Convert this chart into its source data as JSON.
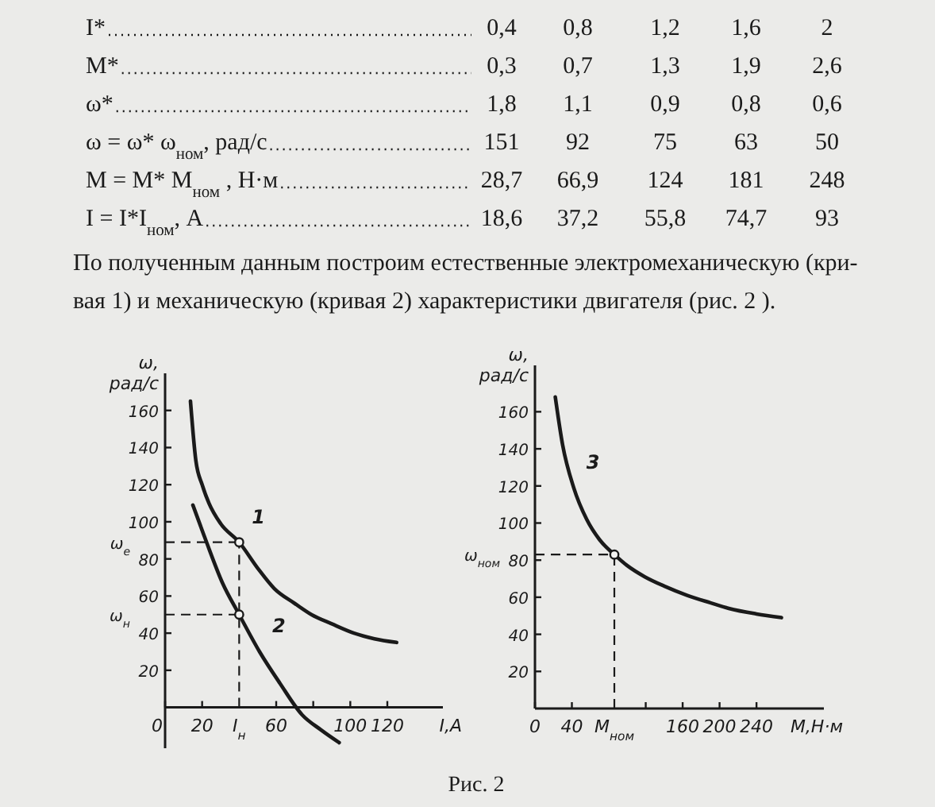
{
  "chart_data": [
    {
      "type": "line",
      "xlabel": "I,A",
      "ylabel": "ω,\nрад/с",
      "xlim": [
        0,
        150
      ],
      "ylim": [
        -22,
        180
      ],
      "xticks": [
        0,
        20,
        60,
        {
          "value": 80,
          "label": null
        },
        100,
        120
      ],
      "yticks": [
        20,
        40,
        60,
        80,
        100,
        120,
        140,
        160
      ],
      "series": [
        {
          "color": "#1a1a1a",
          "marker": "none",
          "x": [
            13.7,
            16.6,
            20,
            23.7,
            30,
            40,
            50,
            59,
            70,
            79,
            90,
            102,
            113,
            125
          ],
          "values": [
            165,
            133,
            120,
            110,
            99,
            89,
            75,
            64,
            56,
            50,
            45,
            40,
            37,
            35
          ]
        },
        {
          "color": "#1a1a1a",
          "marker": "none",
          "x": [
            15,
            22,
            31,
            40,
            51,
            62,
            74,
            84,
            94
          ],
          "values": [
            109,
            90,
            67,
            50,
            30,
            13,
            -4,
            -12,
            -19
          ]
        },
        {
          "type": "scatter",
          "color": "#1a1a1a",
          "marker": "circle",
          "x": [
            40,
            40
          ],
          "values": [
            89,
            50
          ]
        }
      ],
      "ref_lines": [
        {
          "axis": "y",
          "value": 89,
          "label": "ω$_{е}$",
          "line_style": "dashed"
        },
        {
          "axis": "y",
          "value": 50,
          "label": "ω$_{н}$",
          "line_style": "dashed"
        },
        {
          "axis": "x",
          "value": 40,
          "label": "I$_{н}$",
          "line_style": "dashed"
        }
      ],
      "annotations": [
        "I*\t0,4\t0,8\t1,2\t1,6\t2",
        "M*\t0,3\t0,7\t1,3\t1,9\t2,6",
        "ω*\t1,8\t1,1\t0,9\t0,8\t0,6",
        "ω = ω* ω$_{ном}$, рад/с\t151\t92\t75\t63\t50",
        "M = M* M$_{ном}$ , Н·м\t28,7\t66,9\t124\t181\t248",
        "I = I*I$_{ном}$, А\t18,6\t37,2\t55,8\t74,7\t93",
        "По полученным данным построим естественные электромеханическую (кри-\nвая 1) и механическую (кривая 2) характеристики двигателя (рис. 2 ).",
        {
          "text": "1",
          "x": 40,
          "y": 89
        },
        {
          "text": "2",
          "x": 51,
          "y": 30
        }
      ]
    },
    {
      "type": "line",
      "xlabel": "M,Н·м",
      "ylabel": "ω,\nрад/с",
      "xlim": [
        0,
        313
      ],
      "ylim": [
        0,
        185
      ],
      "xticks": [
        0,
        40,
        {
          "value": 120,
          "label": null
        },
        160,
        200,
        240
      ],
      "yticks": [
        20,
        40,
        60,
        80,
        100,
        120,
        140,
        160
      ],
      "series": [
        {
          "color": "#1a1a1a",
          "marker": "none",
          "x": [
            22,
            30,
            42,
            56,
            70,
            86,
            100,
            119,
            140,
            165,
            190,
            210,
            240,
            267
          ],
          "values": [
            168,
            142,
            119,
            102,
            91,
            83,
            77,
            71,
            66,
            61,
            57,
            54,
            51,
            49
          ]
        },
        {
          "type": "scatter",
          "color": "#1a1a1a",
          "marker": "circle",
          "x": [
            86
          ],
          "values": [
            83
          ]
        }
      ],
      "ref_lines": [
        {
          "axis": "y",
          "value": 83,
          "label": "ω$_{ном}$",
          "line_style": "dashed"
        },
        {
          "axis": "x",
          "value": 86,
          "label": "M$_{ном}$",
          "line_style": "dashed"
        }
      ],
      "annotations": [
        "Рис. 2",
        {
          "text": "3",
          "x": 42,
          "y": 119
        }
      ]
    }
  ]
}
